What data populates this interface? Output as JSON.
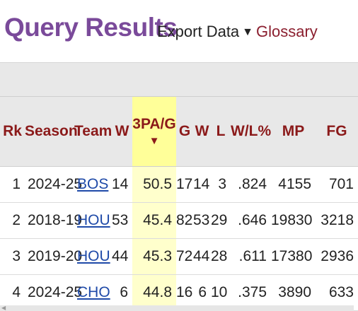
{
  "header": {
    "title": "Query Results",
    "export_label": "Export Data",
    "export_caret": "▼",
    "glossary_label": "Glossary"
  },
  "table": {
    "columns": [
      "Rk",
      "Season",
      "Team",
      "W",
      "3PA/G",
      "G",
      "W",
      "L",
      "W/L%",
      "MP",
      "FG"
    ],
    "sort_arrow": "▼",
    "rows": [
      [
        "1",
        "2024-25",
        "BOS",
        "14",
        "50.5",
        "17",
        "14",
        "3",
        ".824",
        "4155",
        "701"
      ],
      [
        "2",
        "2018-19",
        "HOU",
        "53",
        "45.4",
        "82",
        "53",
        "29",
        ".646",
        "19830",
        "3218"
      ],
      [
        "3",
        "2019-20",
        "HOU",
        "44",
        "45.3",
        "72",
        "44",
        "28",
        ".611",
        "17380",
        "2936"
      ],
      [
        "4",
        "2024-25",
        "CHO",
        "6",
        "44.8",
        "16",
        "6",
        "10",
        ".375",
        "3890",
        "633"
      ]
    ]
  },
  "colors": {
    "title": "#7a4a9a",
    "header_text": "#8b1a1a",
    "glossary": "#8b1f2f",
    "link": "#1f4aa8",
    "sorted_header_bg": "#ffff99",
    "sorted_cell_bg": "#ffffcc"
  }
}
